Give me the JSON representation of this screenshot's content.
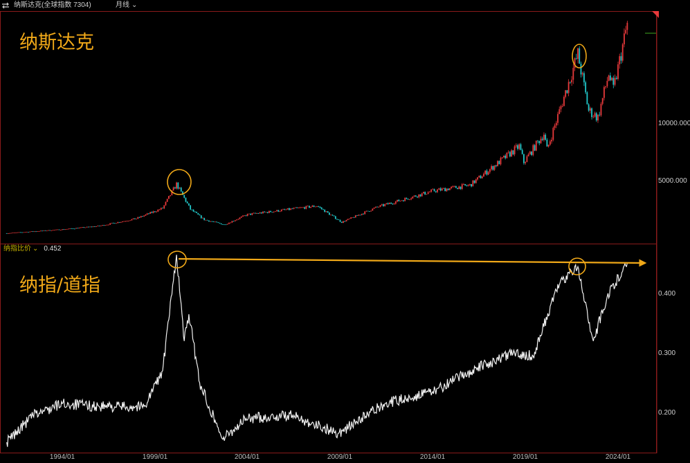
{
  "header": {
    "title": "纳斯达克(全球指数 7304)",
    "period": "月线",
    "chevron": "⌄"
  },
  "annotations": {
    "top_label": "纳斯达克",
    "bottom_label": "纳指/道指"
  },
  "subchart": {
    "name": "纳指比价",
    "chevron": "⌄",
    "value": "0.452"
  },
  "colors": {
    "up": "#e8393b",
    "down": "#21c7c9",
    "ratio_line": "#f2f2f2",
    "highlight": "#f0a818",
    "frame": "#8b1b1b",
    "bg": "#000000"
  },
  "chart_data": [
    {
      "type": "candlestick",
      "title": "纳斯达克",
      "frequency": "monthly",
      "y_ticks": [
        "5000.000",
        "10000.000"
      ],
      "x_ticks": [
        "1994/01",
        "1999/01",
        "2004/01",
        "2009/01",
        "2014/01",
        "2019/01",
        "2024/01"
      ],
      "x_range": [
        "1991/01",
        "2024/12"
      ],
      "series_keypoints": [
        {
          "x": "1991/01",
          "y": 420
        },
        {
          "x": "1994/01",
          "y": 750
        },
        {
          "x": "1996/01",
          "y": 1050
        },
        {
          "x": "1998/01",
          "y": 1700
        },
        {
          "x": "1999/06",
          "y": 2600
        },
        {
          "x": "2000/03",
          "y": 4700
        },
        {
          "x": "2000/12",
          "y": 2500
        },
        {
          "x": "2001/09",
          "y": 1600
        },
        {
          "x": "2002/10",
          "y": 1170
        },
        {
          "x": "2004/01",
          "y": 2050
        },
        {
          "x": "2007/10",
          "y": 2800
        },
        {
          "x": "2009/02",
          "y": 1380
        },
        {
          "x": "2011/01",
          "y": 2700
        },
        {
          "x": "2014/01",
          "y": 4100
        },
        {
          "x": "2016/01",
          "y": 4600
        },
        {
          "x": "2018/09",
          "y": 8000
        },
        {
          "x": "2018/12",
          "y": 6600
        },
        {
          "x": "2020/01",
          "y": 9100
        },
        {
          "x": "2020/03",
          "y": 7700
        },
        {
          "x": "2021/11",
          "y": 16000
        },
        {
          "x": "2022/06",
          "y": 11100
        },
        {
          "x": "2022/12",
          "y": 10500
        },
        {
          "x": "2023/07",
          "y": 14300
        },
        {
          "x": "2023/10",
          "y": 12900
        },
        {
          "x": "2024/07",
          "y": 18600
        }
      ],
      "highlights": [
        "2000/03",
        "2021/11"
      ]
    },
    {
      "type": "line",
      "title": "纳指/道指",
      "series": [
        {
          "name": "纳指比价"
        }
      ],
      "y_ticks": [
        "0.200",
        "0.300",
        "0.400"
      ],
      "x_ticks": [
        "1994/01",
        "1999/01",
        "2004/01",
        "2009/01",
        "2014/01",
        "2019/01",
        "2024/01"
      ],
      "x_range": [
        "1991/01",
        "2024/12"
      ],
      "current_value": 0.452,
      "series_keypoints": [
        {
          "x": "1991/01",
          "y": 0.15
        },
        {
          "x": "1992/06",
          "y": 0.195
        },
        {
          "x": "1994/01",
          "y": 0.215
        },
        {
          "x": "1996/01",
          "y": 0.21
        },
        {
          "x": "1998/06",
          "y": 0.21
        },
        {
          "x": "1999/06",
          "y": 0.27
        },
        {
          "x": "2000/03",
          "y": 0.465
        },
        {
          "x": "2000/08",
          "y": 0.32
        },
        {
          "x": "2000/11",
          "y": 0.365
        },
        {
          "x": "2001/06",
          "y": 0.25
        },
        {
          "x": "2002/09",
          "y": 0.155
        },
        {
          "x": "2003/12",
          "y": 0.19
        },
        {
          "x": "2006/06",
          "y": 0.195
        },
        {
          "x": "2008/12",
          "y": 0.165
        },
        {
          "x": "2011/06",
          "y": 0.215
        },
        {
          "x": "2014/01",
          "y": 0.235
        },
        {
          "x": "2016/06",
          "y": 0.275
        },
        {
          "x": "2018/06",
          "y": 0.3
        },
        {
          "x": "2019/06",
          "y": 0.295
        },
        {
          "x": "2020/09",
          "y": 0.405
        },
        {
          "x": "2021/02",
          "y": 0.425
        },
        {
          "x": "2021/11",
          "y": 0.445
        },
        {
          "x": "2022/09",
          "y": 0.32
        },
        {
          "x": "2023/06",
          "y": 0.395
        },
        {
          "x": "2024/07",
          "y": 0.452
        }
      ],
      "highlights": [
        "2000/03",
        "2021/11"
      ]
    }
  ]
}
